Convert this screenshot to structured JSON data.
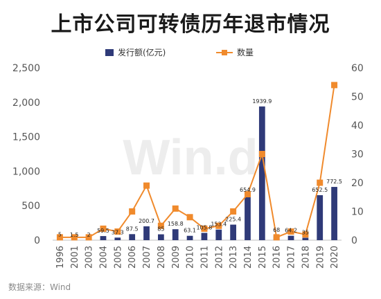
{
  "chart_data": {
    "type": "bar",
    "title": "上市公司可转债历年退市情况",
    "categories": [
      "1996",
      "2001",
      "2003",
      "2004",
      "2005",
      "2006",
      "2007",
      "2008",
      "2009",
      "2010",
      "2011",
      "2012",
      "2013",
      "2014",
      "2015",
      "2016",
      "2017",
      "2018",
      "2019",
      "2020"
    ],
    "series": [
      {
        "name": "发行额(亿元)",
        "type": "bar",
        "axis": "left",
        "color": "#2f3a78",
        "values": [
          5,
          1.5,
          2,
          59.5,
          37.3,
          87.5,
          200.7,
          85,
          158.8,
          63.1,
          105.8,
          153.4,
          225.4,
          654.9,
          1939.9,
          68,
          64.2,
          35,
          652.5,
          772.5
        ],
        "labels": [
          "5",
          "1.5",
          "2",
          "59.5",
          "37.3",
          "87.5",
          "200.7",
          "85",
          "158.8",
          "63.1",
          "105.8",
          "153.4",
          "225.4",
          "654.9",
          "1939.9",
          "68",
          "64.2",
          "35",
          "652.5",
          "772.5"
        ]
      },
      {
        "name": "数量",
        "type": "line",
        "axis": "right",
        "color": "#f08a2c",
        "values": [
          1,
          1,
          1,
          4,
          3,
          10,
          19,
          5,
          11,
          8,
          4,
          5,
          10,
          16,
          30,
          1,
          3,
          2,
          20,
          54
        ]
      }
    ],
    "y_left": {
      "min": 0,
      "max": 2500,
      "ticks": [
        0,
        500,
        1000,
        1500,
        2000,
        2500
      ],
      "tick_labels": [
        "0",
        "500",
        "1,000",
        "1,500",
        "2,000",
        "2,500"
      ]
    },
    "y_right": {
      "min": 0,
      "max": 60,
      "ticks": [
        0,
        10,
        20,
        30,
        40,
        50,
        60
      ],
      "tick_labels": [
        "0",
        "10",
        "20",
        "30",
        "40",
        "50",
        "60"
      ]
    },
    "legend_position": "top-center",
    "grid": false
  },
  "watermark": "Win.d",
  "source": "数据来源：Wind"
}
